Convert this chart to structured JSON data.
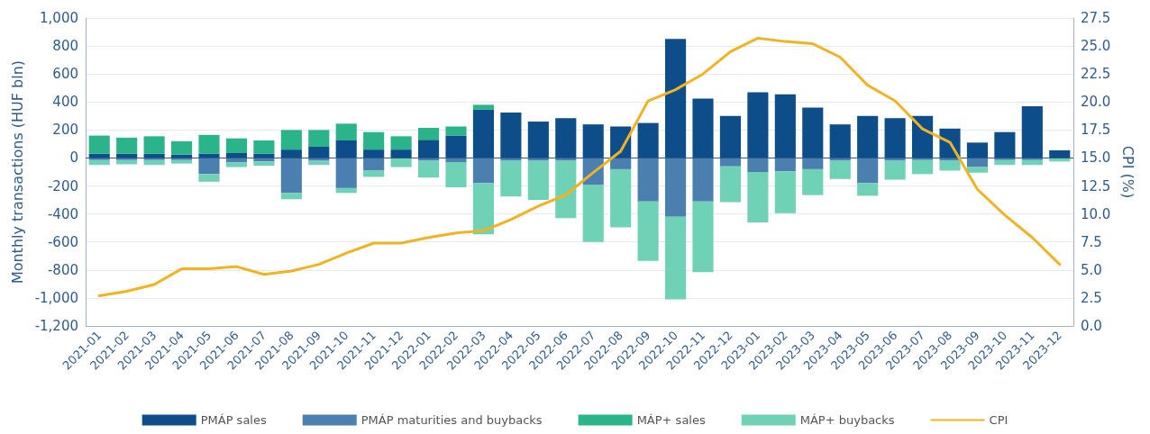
{
  "chart_data": {
    "type": "bar",
    "stacked": true,
    "ylabel": "Monthly transactions (HUF bln)",
    "y2label": "CPI (%)",
    "categories": [
      "2021-01",
      "2021-02",
      "2021-03",
      "2021-04",
      "2021-05",
      "2021-06",
      "2021-07",
      "2021-08",
      "2021-09",
      "2021-10",
      "2021-11",
      "2021-12",
      "2022-01",
      "2022-02",
      "2022-03",
      "2022-04",
      "2022-05",
      "2022-06",
      "2022-07",
      "2022-08",
      "2022-09",
      "2022-10",
      "2022-11",
      "2022-12",
      "2023-01",
      "2023-02",
      "2023-03",
      "2023-04",
      "2023-05",
      "2023-06",
      "2023-07",
      "2023-08",
      "2023-09",
      "2023-10",
      "2023-11",
      "2023-12"
    ],
    "series": [
      {
        "name": "PMÁP sales",
        "color": "#0d4d8a",
        "values": [
          30,
          30,
          30,
          25,
          30,
          35,
          30,
          60,
          80,
          125,
          60,
          60,
          130,
          160,
          345,
          325,
          260,
          285,
          240,
          225,
          250,
          850,
          425,
          300,
          470,
          455,
          360,
          240,
          300,
          285,
          300,
          210,
          110,
          185,
          370,
          55
        ]
      },
      {
        "name": "PMÁP maturities and buybacks",
        "color": "#4a7fb0",
        "values": [
          -15,
          -15,
          -15,
          -15,
          -115,
          -30,
          -25,
          -250,
          -20,
          -215,
          -90,
          null,
          -20,
          -30,
          -180,
          -20,
          -20,
          -20,
          -190,
          -80,
          -310,
          -420,
          -310,
          -60,
          -100,
          -95,
          -80,
          -20,
          -180,
          -20,
          -15,
          -20,
          -65,
          -15,
          -15,
          null
        ]
      },
      {
        "name": "MÁP+ sales",
        "color": "#2bb38a",
        "values": [
          130,
          115,
          125,
          95,
          135,
          105,
          95,
          140,
          120,
          120,
          125,
          95,
          85,
          65,
          35,
          0,
          0,
          0,
          0,
          0,
          0,
          0,
          0,
          0,
          0,
          0,
          0,
          0,
          0,
          0,
          0,
          0,
          0,
          0,
          0,
          0
        ]
      },
      {
        "name": "MÁP+ buybacks",
        "color": "#6fd1b5",
        "values": [
          -35,
          -30,
          -35,
          -25,
          -55,
          -35,
          -30,
          -45,
          -30,
          -35,
          -45,
          -65,
          -120,
          -180,
          -365,
          -255,
          -280,
          -410,
          -410,
          -415,
          -425,
          -590,
          -505,
          -255,
          -360,
          -300,
          -185,
          -130,
          -90,
          -135,
          -100,
          -70,
          -40,
          -35,
          -35,
          -25
        ]
      },
      {
        "name": "CPI",
        "type": "line",
        "axis": "y2",
        "color": "#f0b323",
        "values": [
          2.7,
          3.1,
          3.7,
          5.1,
          5.1,
          5.3,
          4.6,
          4.9,
          5.5,
          6.5,
          7.4,
          7.4,
          7.9,
          8.3,
          8.5,
          9.5,
          10.7,
          11.7,
          13.7,
          15.6,
          20.1,
          21.1,
          22.5,
          24.5,
          25.7,
          25.4,
          25.2,
          24.0,
          21.5,
          20.1,
          17.6,
          16.4,
          12.2,
          9.9,
          7.9,
          5.5
        ]
      }
    ],
    "ylim": [
      -1200,
      1000
    ],
    "yticks": [
      {
        "value": -1200,
        "label": "-1,200"
      },
      {
        "value": -1000,
        "label": "-1,000"
      },
      -800,
      -600,
      -400,
      -200,
      0,
      200,
      400,
      600,
      800,
      {
        "value": 1000,
        "label": "1,000"
      }
    ],
    "y2lim": [
      0,
      27.5
    ],
    "y2ticks": [
      {
        "value": 0,
        "label": "0.0"
      },
      2.5,
      {
        "value": 5,
        "label": "5.0"
      },
      7.5,
      {
        "value": 10,
        "label": "10.0"
      },
      12.5,
      {
        "value": 15,
        "label": "15.0"
      },
      17.5,
      {
        "value": 20,
        "label": "20.0"
      },
      22.5,
      {
        "value": 25,
        "label": "25.0"
      },
      27.5
    ],
    "ref_lines": [
      {
        "axis": "y",
        "value": 0,
        "color": "#2e5b8a"
      }
    ],
    "grid": "y",
    "legend": "bottom",
    "marker": "none",
    "line_style": "solid"
  }
}
